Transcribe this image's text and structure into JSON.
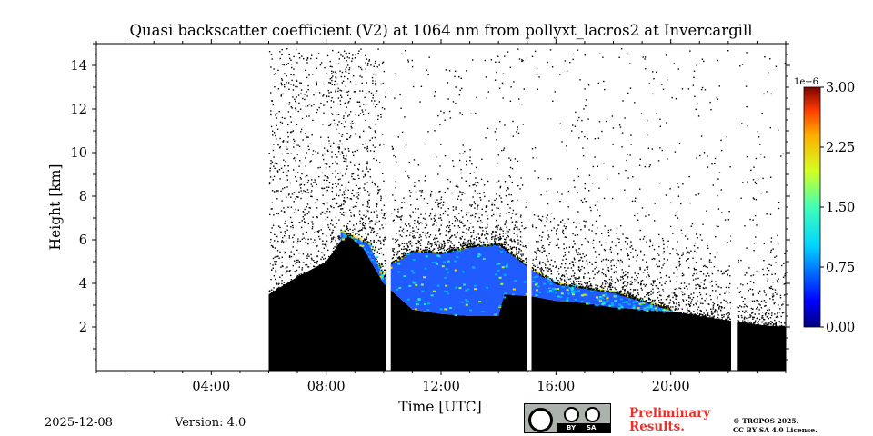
{
  "chart_data": {
    "type": "heatmap",
    "title": "Quasi backscatter coefficient (V2) at 1064 nm from pollyxt_lacros2 at Invercargill",
    "xlabel": "Time [UTC]",
    "ylabel": "Height [km]",
    "xlim_hours": [
      0,
      24
    ],
    "ylim_km": [
      0,
      15
    ],
    "xticks": [
      {
        "hour": 4,
        "label": "04:00"
      },
      {
        "hour": 8,
        "label": "08:00"
      },
      {
        "hour": 12,
        "label": "12:00"
      },
      {
        "hour": 16,
        "label": "16:00"
      },
      {
        "hour": 20,
        "label": "20:00"
      }
    ],
    "yticks": [
      {
        "km": 2,
        "label": "2"
      },
      {
        "km": 4,
        "label": "4"
      },
      {
        "km": 6,
        "label": "6"
      },
      {
        "km": 8,
        "label": "8"
      },
      {
        "km": 10,
        "label": "10"
      },
      {
        "km": 12,
        "label": "12"
      },
      {
        "km": 14,
        "label": "14"
      }
    ],
    "colorbar": {
      "exponent_label": "1e−6",
      "range": [
        0,
        3
      ],
      "ticks": [
        {
          "value": 0.0,
          "label": "0.00"
        },
        {
          "value": 0.75,
          "label": "0.75"
        },
        {
          "value": 1.5,
          "label": "1.50"
        },
        {
          "value": 2.25,
          "label": "2.25"
        },
        {
          "value": 3.0,
          "label": "3.00"
        }
      ],
      "colormap": "jet"
    },
    "measurement_start_hour": 6.0,
    "data_gaps_hours": [
      [
        10.1,
        10.25
      ],
      [
        15.0,
        15.15
      ],
      [
        22.1,
        22.3
      ]
    ],
    "boundary_layer_top_km": [
      [
        6.0,
        3.5
      ],
      [
        7.0,
        4.3
      ],
      [
        8.0,
        5.0
      ],
      [
        8.7,
        6.3
      ],
      [
        9.3,
        5.6
      ],
      [
        10.0,
        4.0
      ],
      [
        11.0,
        2.8
      ],
      [
        12.0,
        2.6
      ],
      [
        13.0,
        2.5
      ],
      [
        14.0,
        2.5
      ],
      [
        14.2,
        3.5
      ],
      [
        15.2,
        3.4
      ],
      [
        16.0,
        3.2
      ],
      [
        17.0,
        3.1
      ],
      [
        18.0,
        2.9
      ],
      [
        19.0,
        2.8
      ],
      [
        20.0,
        2.7
      ],
      [
        21.0,
        2.5
      ],
      [
        22.0,
        2.3
      ],
      [
        23.0,
        2.1
      ],
      [
        24.0,
        2.0
      ]
    ],
    "aerosol_layer_top_km": [
      [
        8.5,
        6.4
      ],
      [
        9.5,
        5.8
      ],
      [
        10.0,
        4.3
      ],
      [
        10.3,
        5.0
      ],
      [
        11.0,
        5.5
      ],
      [
        12.0,
        5.4
      ],
      [
        13.0,
        5.7
      ],
      [
        14.0,
        5.8
      ],
      [
        15.3,
        4.5
      ],
      [
        16.0,
        4.0
      ],
      [
        17.0,
        3.8
      ],
      [
        18.0,
        3.6
      ],
      [
        19.0,
        3.2
      ],
      [
        20.0,
        2.8
      ]
    ]
  },
  "footer": {
    "date": "2025-12-08",
    "version": "Version: 4.0",
    "license_badge": {
      "by": "BY",
      "sa": "SA"
    },
    "preliminary_line1": "Preliminary",
    "preliminary_line2": "Results.",
    "copyright_line1": "© TROPOS 2025.",
    "copyright_line2": "CC BY SA 4.0 License."
  },
  "colors": {
    "signal": "#000000",
    "background": "#ffffff",
    "preliminary": "#e8312b"
  }
}
